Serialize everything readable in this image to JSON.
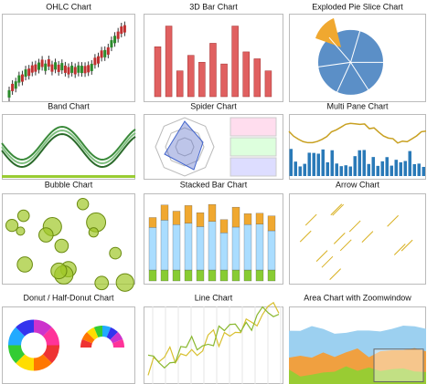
{
  "gallery": {
    "items": [
      {
        "title": "OHLC Chart"
      },
      {
        "title": "3D Bar Chart"
      },
      {
        "title": "Exploded Pie Slice Chart"
      },
      {
        "title": "Band Chart"
      },
      {
        "title": "Spider Chart"
      },
      {
        "title": "Multi Pane Chart"
      },
      {
        "title": "Bubble Chart"
      },
      {
        "title": "Stacked Bar Chart"
      },
      {
        "title": "Arrow Chart"
      },
      {
        "title": "Donut / Half-Donut Chart"
      },
      {
        "title": "Line Chart"
      },
      {
        "title": "Area Chart with Zoomwindow"
      }
    ]
  }
}
